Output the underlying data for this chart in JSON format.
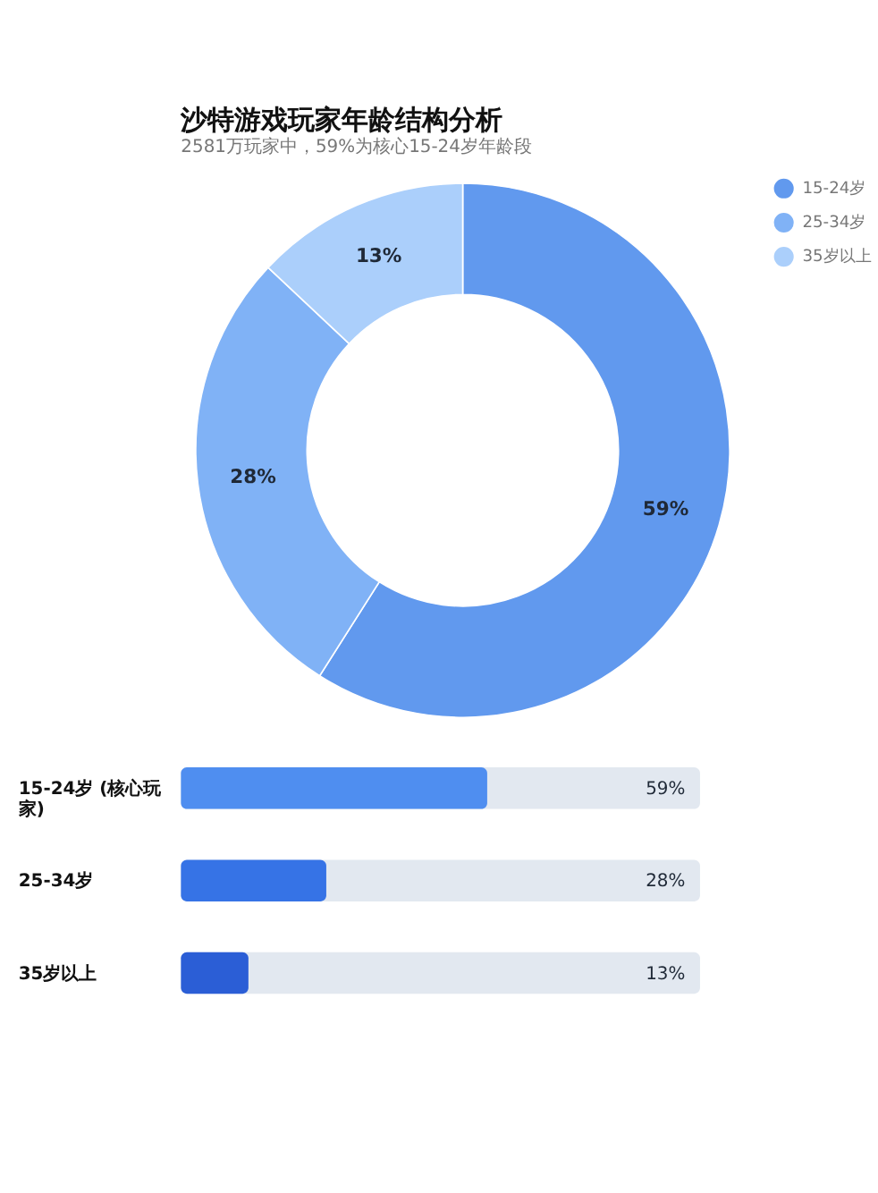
{
  "chart_data": [
    {
      "type": "donut",
      "title": "沙特游戏玩家年龄结构分析",
      "subtitle": "2581万玩家中，59%为核心15-24岁年龄段",
      "categories": [
        "15-24岁",
        "25-34岁",
        "35岁以上"
      ],
      "values": [
        59,
        28,
        13
      ],
      "colors": [
        "#6199ee",
        "#80b2f6",
        "#abcffb"
      ],
      "value_labels": [
        "59%",
        "28%",
        "13%"
      ],
      "legend": "right"
    },
    {
      "type": "bar",
      "orientation": "horizontal",
      "categories": [
        "15-24岁 (核心玩家)",
        "25-34岁",
        "35岁以上"
      ],
      "values": [
        59,
        28,
        13
      ],
      "colors": [
        "#4f8ef0",
        "#3673e6",
        "#2b5ed6"
      ],
      "value_labels": [
        "59%",
        "28%",
        "13%"
      ],
      "xlim": [
        0,
        100
      ],
      "tick_labels": "y"
    }
  ]
}
